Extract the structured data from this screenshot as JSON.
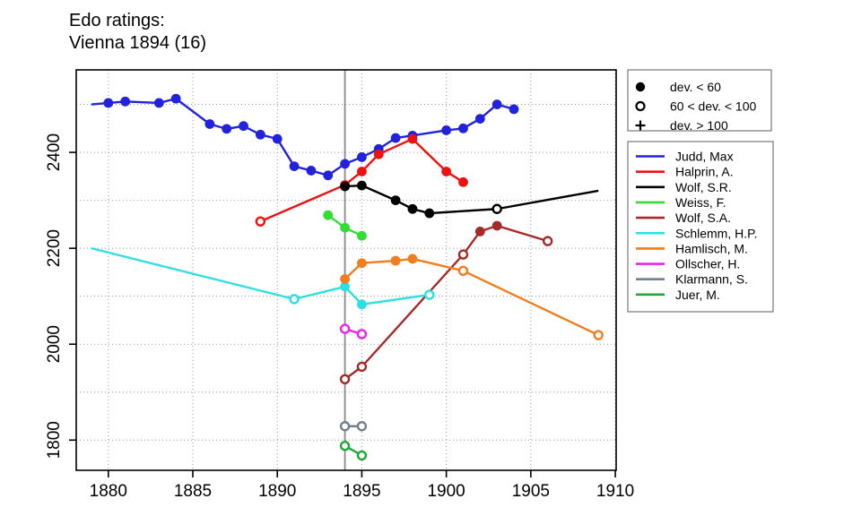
{
  "chart_data": {
    "type": "line",
    "title": "Edo ratings:",
    "subtitle": "Vienna 1894 (16)",
    "x_axis": {
      "range": [
        1878.1,
        1910.05
      ],
      "ticks": [
        1880,
        1885,
        1890,
        1895,
        1900,
        1905,
        1910
      ],
      "gridlines": [
        1880,
        1885,
        1890,
        1895,
        1900,
        1905,
        1910
      ]
    },
    "y_axis": {
      "range": [
        1737,
        2572
      ],
      "ticks": [
        1800,
        2000,
        2200,
        2400
      ],
      "gridlines": [
        1800,
        1900,
        2000,
        2100,
        2200,
        2300,
        2400,
        2500
      ]
    },
    "event_year_line": 1894,
    "grid": true,
    "legend_position": "right",
    "marker_legend": {
      "items": [
        {
          "marker": "filled",
          "label": "dev. < 60"
        },
        {
          "marker": "open",
          "label": "60 < dev. < 100"
        },
        {
          "marker": "plus",
          "label": "dev. > 100"
        }
      ]
    },
    "series": [
      {
        "name": "Judd, Max",
        "color": "#2222DD",
        "points": [
          [
            1879,
            2500,
            "none"
          ],
          [
            1880,
            2503,
            "filled"
          ],
          [
            1881,
            2506,
            "filled"
          ],
          [
            1883,
            2503,
            "filled"
          ],
          [
            1884,
            2512,
            "filled"
          ],
          [
            1886,
            2459,
            "filled"
          ],
          [
            1887,
            2449,
            "filled"
          ],
          [
            1888,
            2455,
            "filled"
          ],
          [
            1889,
            2437,
            "filled"
          ],
          [
            1890,
            2428,
            "filled"
          ],
          [
            1891,
            2371,
            "filled"
          ],
          [
            1892,
            2362,
            "filled"
          ],
          [
            1893,
            2352,
            "filled"
          ],
          [
            1894,
            2376,
            "filled"
          ],
          [
            1895,
            2390,
            "filled"
          ],
          [
            1896,
            2407,
            "filled"
          ],
          [
            1897,
            2430,
            "filled"
          ],
          [
            1898,
            2435,
            "filled"
          ],
          [
            1900,
            2446,
            "filled"
          ],
          [
            1901,
            2450,
            "filled"
          ],
          [
            1902,
            2470,
            "filled"
          ],
          [
            1903,
            2500,
            "filled"
          ],
          [
            1904,
            2490,
            "filled"
          ]
        ]
      },
      {
        "name": "Halprin, A.",
        "color": "#EE1111",
        "points": [
          [
            1889,
            2256,
            "open"
          ],
          [
            1894,
            2332,
            "filled"
          ],
          [
            1895,
            2360,
            "filled"
          ],
          [
            1896,
            2396,
            "filled"
          ],
          [
            1898,
            2428,
            "filled"
          ],
          [
            1900,
            2360,
            "filled"
          ],
          [
            1901,
            2338,
            "filled"
          ]
        ]
      },
      {
        "name": "Wolf, S.R.",
        "color": "#000000",
        "points": [
          [
            1894,
            2329,
            "filled"
          ],
          [
            1895,
            2331,
            "filled"
          ],
          [
            1897,
            2300,
            "filled"
          ],
          [
            1898,
            2282,
            "filled"
          ],
          [
            1899,
            2273,
            "filled"
          ],
          [
            1903,
            2282,
            "open"
          ],
          [
            1909,
            2320,
            "none"
          ]
        ]
      },
      {
        "name": "Weiss, F.",
        "color": "#33DD33",
        "points": [
          [
            1893,
            2269,
            "filled"
          ],
          [
            1894,
            2243,
            "filled"
          ],
          [
            1895,
            2226,
            "filled"
          ]
        ]
      },
      {
        "name": "Wolf, S.A.",
        "color": "#A52A2A",
        "points": [
          [
            1894,
            1927,
            "open"
          ],
          [
            1895,
            1953,
            "open"
          ],
          [
            1901,
            2187,
            "open"
          ],
          [
            1902,
            2235,
            "filled"
          ],
          [
            1903,
            2247,
            "filled"
          ],
          [
            1906,
            2215,
            "open"
          ]
        ]
      },
      {
        "name": "Schlemm, H.P.",
        "color": "#2BE0E0",
        "points": [
          [
            1879,
            2200,
            "none"
          ],
          [
            1891,
            2094,
            "open"
          ],
          [
            1894,
            2120,
            "filled"
          ],
          [
            1895,
            2083,
            "filled"
          ],
          [
            1899,
            2103,
            "open"
          ]
        ]
      },
      {
        "name": "Hamlisch, M.",
        "color": "#F07D1E",
        "points": [
          [
            1894,
            2136,
            "filled"
          ],
          [
            1895,
            2169,
            "filled"
          ],
          [
            1897,
            2174,
            "filled"
          ],
          [
            1898,
            2178,
            "filled"
          ],
          [
            1901,
            2153,
            "open"
          ],
          [
            1909,
            2019,
            "open"
          ]
        ]
      },
      {
        "name": "Ollscher, H.",
        "color": "#EE22EE",
        "points": [
          [
            1894,
            2032,
            "open"
          ],
          [
            1895,
            2021,
            "open"
          ]
        ]
      },
      {
        "name": "Klarmann, S.",
        "color": "#708090",
        "points": [
          [
            1894,
            1829,
            "open"
          ],
          [
            1895,
            1829,
            "open"
          ]
        ]
      },
      {
        "name": "Juer, M.",
        "color": "#1FA838",
        "points": [
          [
            1894,
            1788,
            "open"
          ],
          [
            1895,
            1768,
            "open"
          ]
        ]
      }
    ],
    "colors": {
      "grid": "#999999",
      "event_line": "#8a8a8a",
      "axis": "#000000",
      "legend_border": "#777777"
    }
  }
}
